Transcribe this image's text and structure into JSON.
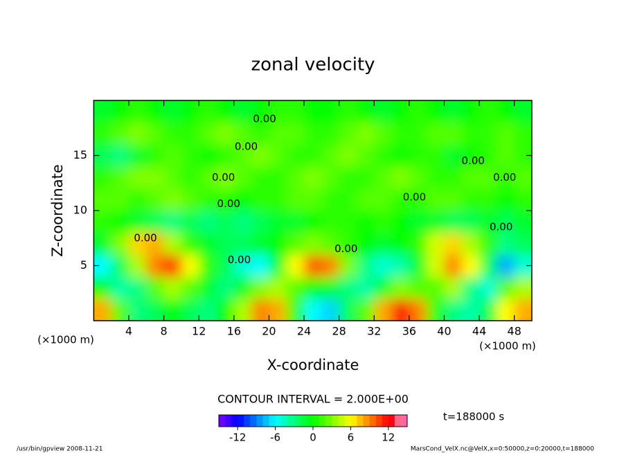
{
  "chart_data": {
    "type": "contour",
    "title": "zonal velocity",
    "xlabel": "X-coordinate",
    "ylabel": "Z-coordinate",
    "xunit": "(×1000 m)",
    "yunit": "(×1000 m)",
    "xlim": [
      0,
      50
    ],
    "ylim": [
      0,
      20
    ],
    "xticks": [
      4,
      8,
      12,
      16,
      20,
      24,
      28,
      32,
      36,
      40,
      44,
      48
    ],
    "yticks": [
      5,
      10,
      15
    ],
    "x": [
      1,
      3,
      5,
      7,
      9,
      11,
      13,
      15,
      17,
      19,
      21,
      23,
      25,
      27,
      29,
      31,
      33,
      35,
      37,
      39,
      41,
      43,
      45,
      47,
      49
    ],
    "z": [
      1,
      3,
      5,
      7,
      9,
      11,
      13,
      15,
      17,
      19
    ],
    "values": [
      [
        8,
        2,
        -3,
        -2,
        0,
        -2,
        -3,
        0,
        4,
        9,
        8,
        1,
        -6,
        -7,
        -2,
        2,
        8,
        12,
        9,
        1,
        -3,
        -4,
        -2,
        6,
        8
      ],
      [
        0,
        -4,
        -3,
        2,
        4,
        2,
        -1,
        -3,
        -1,
        3,
        4,
        2,
        0,
        -1,
        -3,
        -4,
        -1,
        3,
        2,
        2,
        4,
        -3,
        -5,
        2,
        4
      ],
      [
        -6,
        -2,
        4,
        9,
        11,
        6,
        1,
        -2,
        -5,
        -6,
        -1,
        6,
        10,
        9,
        3,
        -3,
        -5,
        -4,
        -1,
        5,
        9,
        6,
        -2,
        -8,
        -5
      ],
      [
        -1,
        3,
        7,
        8,
        4,
        1,
        -1,
        -2,
        -2,
        -1,
        0,
        2,
        3,
        2,
        1,
        0,
        -1,
        0,
        1,
        5,
        7,
        4,
        1,
        -3,
        -2
      ],
      [
        1,
        0,
        -1,
        -2,
        -3,
        -2,
        -3,
        -2,
        -3,
        -2,
        -1,
        -1,
        0,
        1,
        1,
        0,
        1,
        0,
        -1,
        -1,
        -2,
        -2,
        -1,
        -2,
        -1
      ],
      [
        2,
        2,
        1,
        2,
        3,
        2,
        1,
        1,
        0,
        1,
        1,
        2,
        2,
        1,
        1,
        2,
        2,
        1,
        1,
        2,
        2,
        1,
        1,
        0,
        1
      ],
      [
        1,
        2,
        3,
        3,
        2,
        1,
        2,
        3,
        2,
        1,
        1,
        2,
        3,
        2,
        1,
        1,
        2,
        3,
        2,
        1,
        1,
        2,
        2,
        1,
        2
      ],
      [
        -2,
        -3,
        -1,
        1,
        2,
        1,
        0,
        1,
        2,
        3,
        2,
        1,
        1,
        2,
        3,
        2,
        1,
        0,
        1,
        1,
        -1,
        0,
        1,
        2,
        1
      ],
      [
        1,
        2,
        3,
        2,
        1,
        1,
        2,
        3,
        2,
        1,
        2,
        2,
        1,
        1,
        2,
        3,
        2,
        1,
        1,
        2,
        2,
        1,
        1,
        2,
        1
      ],
      [
        -1,
        0,
        1,
        0,
        -1,
        0,
        1,
        0,
        -1,
        0,
        1,
        1,
        0,
        0,
        1,
        0,
        -1,
        0,
        1,
        0,
        -1,
        0,
        1,
        0,
        -1
      ]
    ],
    "contour_labels": [
      {
        "x": 19.5,
        "z": 18.3,
        "label": "0.00"
      },
      {
        "x": 17.4,
        "z": 15.8,
        "label": "0.00"
      },
      {
        "x": 14.8,
        "z": 13.0,
        "label": "0.00"
      },
      {
        "x": 15.4,
        "z": 10.6,
        "label": "0.00"
      },
      {
        "x": 43.3,
        "z": 14.5,
        "label": "0.00"
      },
      {
        "x": 46.9,
        "z": 13.0,
        "label": "0.00"
      },
      {
        "x": 36.6,
        "z": 11.2,
        "label": "0.00"
      },
      {
        "x": 46.5,
        "z": 8.5,
        "label": "0.00"
      },
      {
        "x": 28.8,
        "z": 6.5,
        "label": "0.00"
      },
      {
        "x": 5.9,
        "z": 7.5,
        "label": "0.00"
      },
      {
        "x": 16.6,
        "z": 5.5,
        "label": "0.00"
      }
    ],
    "contour_interval_text": "CONTOUR INTERVAL = 2.000E+00",
    "clim": [
      -15,
      15
    ],
    "cticks": [
      -12,
      -6,
      0,
      6,
      12
    ],
    "time_label": "t=188000 s",
    "footer_left": "/usr/bin/gpview  2008-11-21",
    "footer_right": "MarsCond_VelX.nc@VelX,x=0:50000,z=0:20000,t=188000"
  }
}
